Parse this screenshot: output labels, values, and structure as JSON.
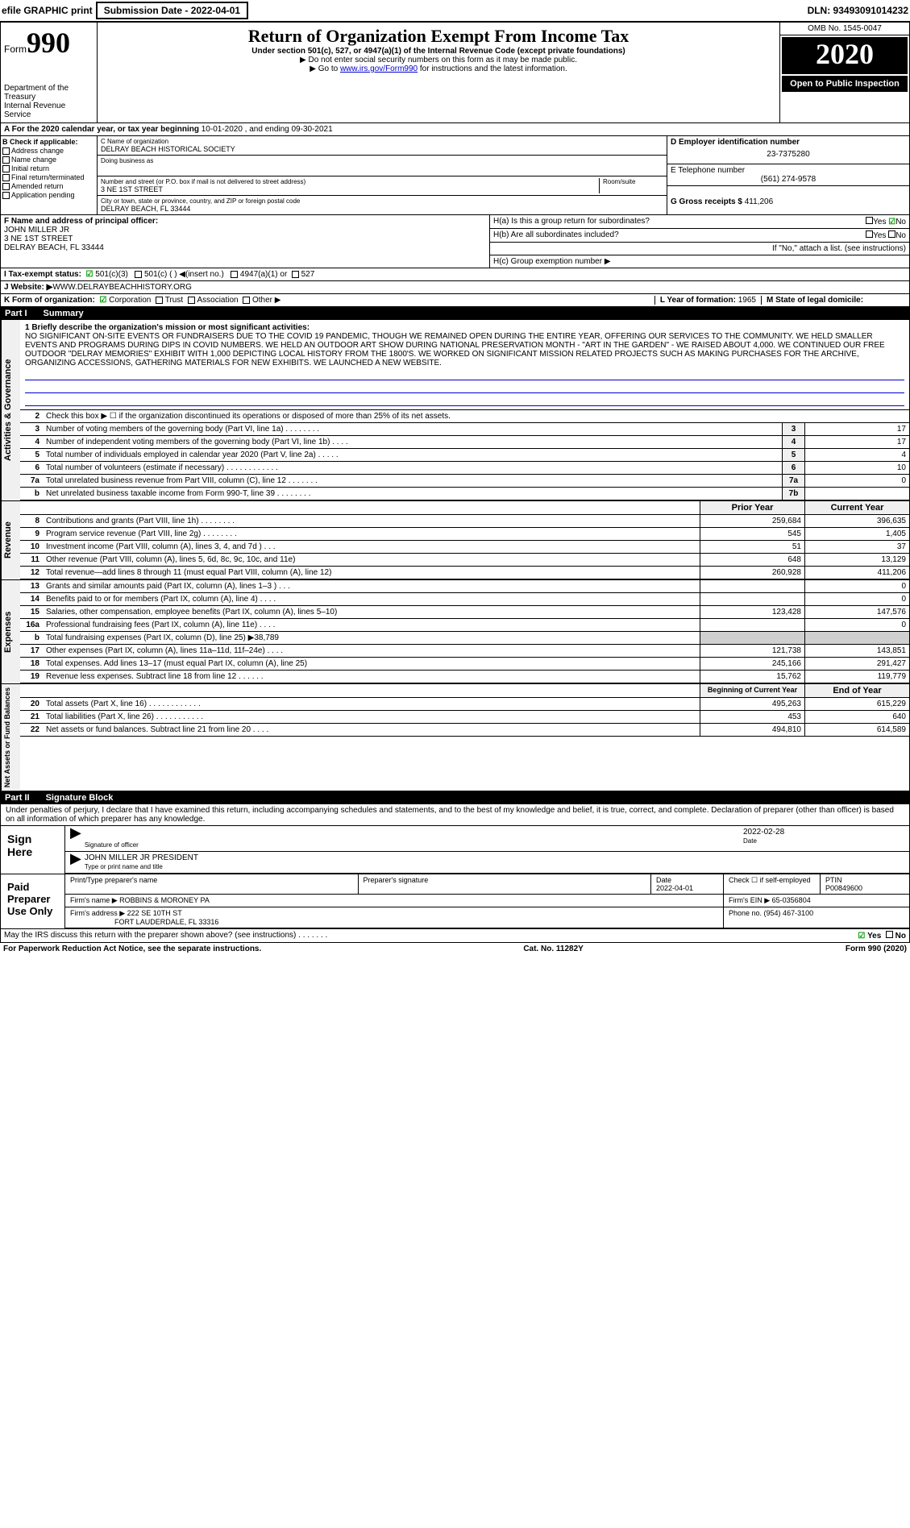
{
  "topbar": {
    "efile": "efile GRAPHIC print",
    "sub_label": "Submission Date - 2022-04-01",
    "dln": "DLN: 93493091014232"
  },
  "header": {
    "form_word": "Form",
    "form_num": "990",
    "dept": "Department of the Treasury\nInternal Revenue Service",
    "title": "Return of Organization Exempt From Income Tax",
    "sub1": "Under section 501(c), 527, or 4947(a)(1) of the Internal Revenue Code (except private foundations)",
    "sub2": "▶ Do not enter social security numbers on this form as it may be made public.",
    "sub3_pre": "▶ Go to ",
    "sub3_link": "www.irs.gov/Form990",
    "sub3_post": " for instructions and the latest information.",
    "omb": "OMB No. 1545-0047",
    "year": "2020",
    "open": "Open to Public Inspection"
  },
  "period": {
    "text_pre": "A For the 2020 calendar year, or tax year beginning ",
    "begin": "10-01-2020",
    "mid": " , and ending ",
    "end": "09-30-2021"
  },
  "colB": {
    "heading": "B Check if applicable:",
    "items": [
      "Address change",
      "Name change",
      "Initial return",
      "Final return/terminated",
      "Amended return",
      "Application pending"
    ]
  },
  "colC": {
    "name_label": "C Name of organization",
    "name": "DELRAY BEACH HISTORICAL SOCIETY",
    "dba_label": "Doing business as",
    "street_label": "Number and street (or P.O. box if mail is not delivered to street address)",
    "room_label": "Room/suite",
    "street": "3 NE 1ST STREET",
    "city_label": "City or town, state or province, country, and ZIP or foreign postal code",
    "city": "DELRAY BEACH, FL  33444"
  },
  "colD": {
    "ein_label": "D Employer identification number",
    "ein": "23-7375280",
    "tel_label": "E Telephone number",
    "tel": "(561) 274-9578",
    "gross_label": "G Gross receipts $ ",
    "gross": "411,206"
  },
  "rowF": {
    "label": "F  Name and address of principal officer:",
    "name": "JOHN MILLER JR",
    "addr1": "3 NE 1ST STREET",
    "addr2": "DELRAY BEACH, FL  33444",
    "ha": "H(a)  Is this a group return for subordinates?",
    "hb": "H(b)  Are all subordinates included?",
    "hb_note": "If \"No,\" attach a list. (see instructions)",
    "hc": "H(c)  Group exemption number ▶",
    "yes": "Yes",
    "no": "No"
  },
  "tax": {
    "label": "I  Tax-exempt status:",
    "o1": "501(c)(3)",
    "o2": "501(c) (   ) ◀(insert no.)",
    "o3": "4947(a)(1) or",
    "o4": "527"
  },
  "web": {
    "label": "J  Website: ▶",
    "url": " WWW.DELRAYBEACHHISTORY.ORG"
  },
  "kform": {
    "label": "K Form of organization:",
    "opts": [
      "Corporation",
      "Trust",
      "Association",
      "Other ▶"
    ],
    "l_label": "L Year of formation: ",
    "l_val": "1965",
    "m_label": "M State of legal domicile:",
    "m_val": ""
  },
  "part1": {
    "num": "Part I",
    "title": "Summary"
  },
  "mission": {
    "label": "1  Briefly describe the organization's mission or most significant activities:",
    "text": "NO SIGNIFICANT ON-SITE EVENTS OR FUNDRAISERS DUE TO THE COVID 19 PANDEMIC, THOUGH WE REMAINED OPEN DURING THE ENTIRE YEAR, OFFERING OUR SERVICES TO THE COMMUNITY. WE HELD SMALLER EVENTS AND PROGRAMS DURING DIPS IN COVID NUMBERS. WE HELD AN OUTDOOR ART SHOW DURING NATIONAL PRESERVATION MONTH - \"ART IN THE GARDEN\" - WE RAISED ABOUT 4,000. WE CONTINUED OUR FREE OUTDOOR \"DELRAY MEMORIES\" EXHIBIT WITH 1,000 DEPICTING LOCAL HISTORY FROM THE 1800'S. WE WORKED ON SIGNIFICANT MISSION RELATED PROJECTS SUCH AS MAKING PURCHASES FOR THE ARCHIVE, ORGANIZING ACCESSIONS, GATHERING MATERIALS FOR NEW EXHIBITS. WE LAUNCHED A NEW WEBSITE."
  },
  "side": {
    "governance": "Activities & Governance",
    "revenue": "Revenue",
    "expenses": "Expenses",
    "net": "Net Assets or Fund Balances"
  },
  "gov_lines": [
    {
      "n": "2",
      "t": "Check this box ▶ ☐ if the organization discontinued its operations or disposed of more than 25% of its net assets."
    },
    {
      "n": "3",
      "t": "Number of voting members of the governing body (Part VI, line 1a)  .   .   .   .   .   .   .   .",
      "b": "3",
      "v": "17"
    },
    {
      "n": "4",
      "t": "Number of independent voting members of the governing body (Part VI, line 1b)  .   .   .   .",
      "b": "4",
      "v": "17"
    },
    {
      "n": "5",
      "t": "Total number of individuals employed in calendar year 2020 (Part V, line 2a)  .   .   .   .   .",
      "b": "5",
      "v": "4"
    },
    {
      "n": "6",
      "t": "Total number of volunteers (estimate if necessary)   .   .   .   .   .   .   .   .   .   .   .   .",
      "b": "6",
      "v": "10"
    },
    {
      "n": "7a",
      "t": "Total unrelated business revenue from Part VIII, column (C), line 12   .   .   .   .   .   .   .",
      "b": "7a",
      "v": "0"
    },
    {
      "n": "b",
      "t": "Net unrelated business taxable income from Form 990-T, line 39   .   .   .   .   .   .   .   .",
      "b": "7b",
      "v": ""
    }
  ],
  "rev_hdr": {
    "prior": "Prior Year",
    "cur": "Current Year"
  },
  "rev_lines": [
    {
      "n": "8",
      "t": "Contributions and grants (Part VIII, line 1h)   .   .   .   .   .   .   .   .",
      "p": "259,684",
      "c": "396,635"
    },
    {
      "n": "9",
      "t": "Program service revenue (Part VIII, line 2g)   .   .   .   .   .   .   .   .",
      "p": "545",
      "c": "1,405"
    },
    {
      "n": "10",
      "t": "Investment income (Part VIII, column (A), lines 3, 4, and 7d )   .   .   .",
      "p": "51",
      "c": "37"
    },
    {
      "n": "11",
      "t": "Other revenue (Part VIII, column (A), lines 5, 6d, 8c, 9c, 10c, and 11e)",
      "p": "648",
      "c": "13,129"
    },
    {
      "n": "12",
      "t": "Total revenue—add lines 8 through 11 (must equal Part VIII, column (A), line 12)",
      "p": "260,928",
      "c": "411,206"
    }
  ],
  "exp_lines": [
    {
      "n": "13",
      "t": "Grants and similar amounts paid (Part IX, column (A), lines 1–3 )   .   .   .",
      "p": "",
      "c": "0"
    },
    {
      "n": "14",
      "t": "Benefits paid to or for members (Part IX, column (A), line 4)   .   .   .   .",
      "p": "",
      "c": "0"
    },
    {
      "n": "15",
      "t": "Salaries, other compensation, employee benefits (Part IX, column (A), lines 5–10)",
      "p": "123,428",
      "c": "147,576"
    },
    {
      "n": "16a",
      "t": "Professional fundraising fees (Part IX, column (A), line 11e)   .   .   .   .",
      "p": "",
      "c": "0"
    },
    {
      "n": "b",
      "t": "Total fundraising expenses (Part IX, column (D), line 25) ▶38,789",
      "shade": true
    },
    {
      "n": "17",
      "t": "Other expenses (Part IX, column (A), lines 11a–11d, 11f–24e)   .   .   .   .",
      "p": "121,738",
      "c": "143,851"
    },
    {
      "n": "18",
      "t": "Total expenses. Add lines 13–17 (must equal Part IX, column (A), line 25)",
      "p": "245,166",
      "c": "291,427"
    },
    {
      "n": "19",
      "t": "Revenue less expenses. Subtract line 18 from line 12   .   .   .   .   .   .",
      "p": "15,762",
      "c": "119,779"
    }
  ],
  "net_hdr": {
    "begin": "Beginning of Current Year",
    "end": "End of Year"
  },
  "net_lines": [
    {
      "n": "20",
      "t": "Total assets (Part X, line 16)   .   .   .   .   .   .   .   .   .   .   .   .",
      "p": "495,263",
      "c": "615,229"
    },
    {
      "n": "21",
      "t": "Total liabilities (Part X, line 26)   .   .   .   .   .   .   .   .   .   .   .",
      "p": "453",
      "c": "640"
    },
    {
      "n": "22",
      "t": "Net assets or fund balances. Subtract line 21 from line 20   .   .   .   .",
      "p": "494,810",
      "c": "614,589"
    }
  ],
  "part2": {
    "num": "Part II",
    "title": "Signature Block"
  },
  "sig": {
    "perjury": "Under penalties of perjury, I declare that I have examined this return, including accompanying schedules and statements, and to the best of my knowledge and belief, it is true, correct, and complete. Declaration of preparer (other than officer) is based on all information of which preparer has any knowledge.",
    "sign_here": "Sign Here",
    "sig_officer": "Signature of officer",
    "date": "Date",
    "date_val": "2022-02-28",
    "officer_name": "JOHN MILLER JR  PRESIDENT",
    "type_print": "Type or print name and title",
    "paid": "Paid Preparer Use Only",
    "prep_name_label": "Print/Type preparer's name",
    "prep_sig_label": "Preparer's signature",
    "prep_date": "2022-04-01",
    "self_emp": "Check ☐ if self-employed",
    "ptin_label": "PTIN",
    "ptin": "P00849600",
    "firm_name_label": "Firm's name    ▶",
    "firm_name": "ROBBINS & MORONEY PA",
    "firm_ein_label": "Firm's EIN ▶",
    "firm_ein": "65-0356804",
    "firm_addr_label": "Firm's address ▶",
    "firm_addr": "222 SE 10TH ST",
    "firm_city": "FORT LAUDERDALE, FL  33316",
    "phone_label": "Phone no. ",
    "phone": "(954) 467-3100"
  },
  "footer": {
    "discuss": "May the IRS discuss this return with the preparer shown above? (see instructions)   .   .   .   .   .   .   .",
    "paperwork": "For Paperwork Reduction Act Notice, see the separate instructions.",
    "cat": "Cat. No. 11282Y",
    "form": "Form 990 (2020)"
  }
}
